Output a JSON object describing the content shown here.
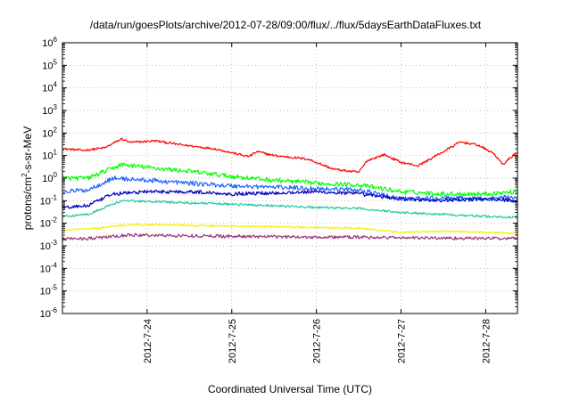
{
  "chart_data": {
    "type": "line",
    "title": "/data/run/goesPlots/archive/2012-07-28/09:00/flux/../flux/5daysEarthDataFluxes.txt",
    "xlabel": "Coordinated Universal Time (UTC)",
    "ylabel_parts": [
      "protons/cm",
      "2",
      "-s-sr-MeV"
    ],
    "y_scale": "log",
    "ylim": [
      1e-06,
      1000000.0
    ],
    "y_ticks": [
      {
        "value": 1000000.0,
        "base": "10",
        "exp": "6"
      },
      {
        "value": 100000.0,
        "base": "10",
        "exp": "5"
      },
      {
        "value": 10000.0,
        "base": "10",
        "exp": "4"
      },
      {
        "value": 1000.0,
        "base": "10",
        "exp": "3"
      },
      {
        "value": 100.0,
        "base": "10",
        "exp": "2"
      },
      {
        "value": 10.0,
        "base": "10",
        "exp": "1"
      },
      {
        "value": 1.0,
        "base": "10",
        "exp": "0"
      },
      {
        "value": 0.1,
        "base": "10",
        "exp": "-1"
      },
      {
        "value": 0.01,
        "base": "10",
        "exp": "-2"
      },
      {
        "value": 0.001,
        "base": "10",
        "exp": "-3"
      },
      {
        "value": 0.0001,
        "base": "10",
        "exp": "-4"
      },
      {
        "value": 1e-05,
        "base": "10",
        "exp": "-5"
      },
      {
        "value": 1e-06,
        "base": "10",
        "exp": "-6"
      }
    ],
    "xlim": [
      "2012-07-23 00:00",
      "2012-07-28 09:00"
    ],
    "x_ticks": [
      {
        "value": "2012-07-24 00:00",
        "label": "2012-7-24"
      },
      {
        "value": "2012-07-25 00:00",
        "label": "2012-7-25"
      },
      {
        "value": "2012-07-26 00:00",
        "label": "2012-7-26"
      },
      {
        "value": "2012-07-27 00:00",
        "label": "2012-7-27"
      },
      {
        "value": "2012-07-28 00:00",
        "label": "2012-7-28"
      }
    ],
    "grid": true,
    "legend": "none",
    "series": [
      {
        "color": "#ff0000",
        "noise": 0.05,
        "points": [
          [
            "2012-07-23 00:00",
            20
          ],
          [
            "2012-07-23 06:00",
            17
          ],
          [
            "2012-07-23 12:00",
            22
          ],
          [
            "2012-07-23 16:48",
            55
          ],
          [
            "2012-07-23 19:12",
            38
          ],
          [
            "2012-07-24 02:24",
            45
          ],
          [
            "2012-07-24 09:36",
            30
          ],
          [
            "2012-07-24 19:12",
            20
          ],
          [
            "2012-07-25 04:48",
            9
          ],
          [
            "2012-07-25 07:12",
            15
          ],
          [
            "2012-07-25 12:00",
            10
          ],
          [
            "2012-07-25 21:36",
            7
          ],
          [
            "2012-07-26 04:48",
            2.5
          ],
          [
            "2012-07-26 09:36",
            2
          ],
          [
            "2012-07-26 12:00",
            1.8
          ],
          [
            "2012-07-26 14:24",
            6
          ],
          [
            "2012-07-26 19:12",
            11
          ],
          [
            "2012-07-27 00:00",
            5
          ],
          [
            "2012-07-27 04:48",
            3.5
          ],
          [
            "2012-07-27 12:00",
            15
          ],
          [
            "2012-07-27 16:48",
            40
          ],
          [
            "2012-07-27 21:36",
            30
          ],
          [
            "2012-07-28 02:24",
            12
          ],
          [
            "2012-07-28 04:48",
            4
          ],
          [
            "2012-07-28 09:00",
            15
          ]
        ]
      },
      {
        "color": "#00ff00",
        "noise": 0.1,
        "points": [
          [
            "2012-07-23 00:00",
            1.0
          ],
          [
            "2012-07-23 07:12",
            1.0
          ],
          [
            "2012-07-23 16:48",
            4
          ],
          [
            "2012-07-24 00:00",
            3
          ],
          [
            "2012-07-24 12:00",
            2.0
          ],
          [
            "2012-07-25 00:00",
            1.2
          ],
          [
            "2012-07-25 12:00",
            0.8
          ],
          [
            "2012-07-26 00:00",
            0.6
          ],
          [
            "2012-07-26 12:00",
            0.5
          ],
          [
            "2012-07-27 00:00",
            0.25
          ],
          [
            "2012-07-27 12:00",
            0.2
          ],
          [
            "2012-07-28 00:00",
            0.2
          ],
          [
            "2012-07-28 09:00",
            0.25
          ]
        ]
      },
      {
        "color": "#1e64ff",
        "noise": 0.1,
        "points": [
          [
            "2012-07-23 00:00",
            0.25
          ],
          [
            "2012-07-23 07:12",
            0.3
          ],
          [
            "2012-07-23 14:24",
            1.0
          ],
          [
            "2012-07-24 00:00",
            0.8
          ],
          [
            "2012-07-24 12:00",
            0.6
          ],
          [
            "2012-07-25 00:00",
            0.45
          ],
          [
            "2012-07-25 12:00",
            0.4
          ],
          [
            "2012-07-26 00:00",
            0.35
          ],
          [
            "2012-07-26 12:00",
            0.3
          ],
          [
            "2012-07-27 00:00",
            0.12
          ],
          [
            "2012-07-27 12:00",
            0.13
          ],
          [
            "2012-07-28 00:00",
            0.12
          ],
          [
            "2012-07-28 09:00",
            0.15
          ]
        ]
      },
      {
        "color": "#0000bb",
        "noise": 0.08,
        "points": [
          [
            "2012-07-23 00:00",
            0.05
          ],
          [
            "2012-07-23 07:12",
            0.06
          ],
          [
            "2012-07-23 14:24",
            0.2
          ],
          [
            "2012-07-24 00:00",
            0.25
          ],
          [
            "2012-07-24 12:00",
            0.25
          ],
          [
            "2012-07-25 00:00",
            0.2
          ],
          [
            "2012-07-25 12:00",
            0.22
          ],
          [
            "2012-07-26 00:00",
            0.25
          ],
          [
            "2012-07-26 12:00",
            0.2
          ],
          [
            "2012-07-27 00:00",
            0.12
          ],
          [
            "2012-07-27 12:00",
            0.1
          ],
          [
            "2012-07-28 00:00",
            0.12
          ],
          [
            "2012-07-28 09:00",
            0.1
          ]
        ]
      },
      {
        "color": "#20c8a0",
        "noise": 0.05,
        "points": [
          [
            "2012-07-23 00:00",
            0.02
          ],
          [
            "2012-07-23 07:12",
            0.025
          ],
          [
            "2012-07-23 16:48",
            0.1
          ],
          [
            "2012-07-24 12:00",
            0.08
          ],
          [
            "2012-07-25 00:00",
            0.07
          ],
          [
            "2012-07-25 12:00",
            0.06
          ],
          [
            "2012-07-26 00:00",
            0.05
          ],
          [
            "2012-07-26 12:00",
            0.045
          ],
          [
            "2012-07-27 00:00",
            0.03
          ],
          [
            "2012-07-27 12:00",
            0.025
          ],
          [
            "2012-07-28 00:00",
            0.02
          ],
          [
            "2012-07-28 09:00",
            0.018
          ]
        ]
      },
      {
        "color": "#f5f000",
        "noise": 0.04,
        "points": [
          [
            "2012-07-23 00:00",
            0.005
          ],
          [
            "2012-07-23 09:36",
            0.006
          ],
          [
            "2012-07-23 19:12",
            0.009
          ],
          [
            "2012-07-24 12:00",
            0.008
          ],
          [
            "2012-07-25 12:00",
            0.007
          ],
          [
            "2012-07-26 12:00",
            0.006
          ],
          [
            "2012-07-27 00:00",
            0.004
          ],
          [
            "2012-07-27 12:00",
            0.0045
          ],
          [
            "2012-07-28 00:00",
            0.004
          ],
          [
            "2012-07-28 09:00",
            0.0035
          ]
        ]
      },
      {
        "color": "#993377",
        "noise": 0.07,
        "points": [
          [
            "2012-07-23 00:00",
            0.002
          ],
          [
            "2012-07-23 09:36",
            0.0022
          ],
          [
            "2012-07-23 19:12",
            0.003
          ],
          [
            "2012-07-24 12:00",
            0.0028
          ],
          [
            "2012-07-25 12:00",
            0.0025
          ],
          [
            "2012-07-26 12:00",
            0.0024
          ],
          [
            "2012-07-27 12:00",
            0.0022
          ],
          [
            "2012-07-28 09:00",
            0.0021
          ]
        ]
      }
    ]
  }
}
